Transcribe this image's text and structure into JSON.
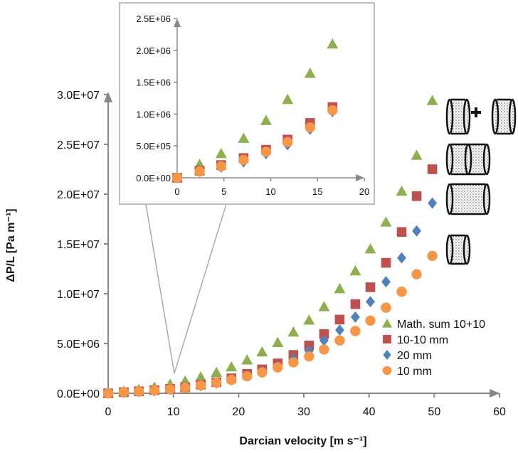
{
  "chart_data": {
    "type": "scatter",
    "title": "",
    "xlabel": "Darcian velocity [m s⁻¹]",
    "ylabel": "ΔP/L [Pa m⁻¹]",
    "xlim": [
      0,
      60
    ],
    "ylim": [
      0,
      30000000
    ],
    "x_ticks": [
      "0",
      "10",
      "20",
      "30",
      "40",
      "50",
      "60"
    ],
    "y_ticks": [
      "0.0E+00",
      "5.0E+06",
      "1.0E+07",
      "1.5E+07",
      "2.0E+07",
      "2.5E+07",
      "3.0E+07"
    ],
    "grid": false,
    "legend_position": "bottom-right",
    "series": [
      {
        "name": "Math. sum 10+10",
        "marker": "triangle",
        "color": "#8db04e",
        "x": [
          0,
          2.4,
          4.7,
          7.1,
          9.5,
          11.8,
          14.2,
          16.6,
          18.9,
          21.3,
          23.6,
          26.0,
          28.4,
          30.8,
          33.1,
          35.5,
          37.9,
          40.2,
          42.6,
          45.0,
          47.3,
          49.7
        ],
        "y": [
          0,
          210000,
          380000,
          620000,
          900000,
          1230000,
          1640000,
          2100000,
          2650000,
          3350000,
          4150000,
          5100000,
          6150000,
          7350000,
          8700000,
          10500000,
          12300000,
          14500000,
          17200000,
          20300000,
          23900000,
          29400000
        ]
      },
      {
        "name": "10-10 mm",
        "marker": "square",
        "color": "#c0504d",
        "x": [
          0,
          2.4,
          4.7,
          7.1,
          9.5,
          11.8,
          14.2,
          16.6,
          18.9,
          21.3,
          23.6,
          26.0,
          28.4,
          30.8,
          33.1,
          35.5,
          37.9,
          40.2,
          42.6,
          45.0,
          47.3,
          49.7
        ],
        "y": [
          0,
          110000,
          200000,
          310000,
          440000,
          600000,
          860000,
          1110000,
          1500000,
          1950000,
          2400000,
          3000000,
          3850000,
          4800000,
          5950000,
          7400000,
          8950000,
          10650000,
          13100000,
          16200000,
          19800000,
          22500000
        ]
      },
      {
        "name": "20 mm",
        "marker": "diamond",
        "color": "#4f81bd",
        "x": [
          0,
          2.4,
          4.7,
          7.1,
          9.5,
          11.8,
          14.2,
          16.6,
          18.9,
          21.3,
          23.6,
          26.0,
          28.4,
          30.8,
          33.1,
          35.5,
          37.9,
          40.2,
          42.6,
          45.0,
          47.3,
          49.7
        ],
        "y": [
          0,
          100000,
          170000,
          250000,
          380000,
          520000,
          760000,
          1040000,
          1350000,
          1750000,
          2200000,
          2650000,
          3450000,
          4250000,
          5300000,
          6350000,
          7650000,
          9200000,
          11200000,
          13600000,
          16300000,
          19100000
        ]
      },
      {
        "name": "10 mm",
        "marker": "circle",
        "color": "#f79646",
        "x": [
          0,
          2.4,
          4.7,
          7.1,
          9.5,
          11.8,
          14.2,
          16.6,
          18.9,
          21.3,
          23.6,
          26.0,
          28.4,
          30.8,
          33.1,
          35.5,
          37.9,
          40.2,
          42.6,
          45.0,
          47.3,
          49.7
        ],
        "y": [
          0,
          100000,
          180000,
          280000,
          410000,
          560000,
          790000,
          1060000,
          1350000,
          1700000,
          2100000,
          2600000,
          3100000,
          3700000,
          4400000,
          5300000,
          6250000,
          7300000,
          8600000,
          10200000,
          11950000,
          13800000
        ]
      }
    ],
    "inset": {
      "xlim": [
        0,
        20
      ],
      "ylim": [
        0,
        2500000
      ],
      "x_ticks": [
        "0",
        "5",
        "10",
        "15",
        "20"
      ],
      "y_ticks": [
        "0.0E+00",
        "5.0E+05",
        "1.0E+06",
        "1.5E+06",
        "2.0E+06",
        "2.5E+06"
      ],
      "x_range_shown": 8
    }
  }
}
